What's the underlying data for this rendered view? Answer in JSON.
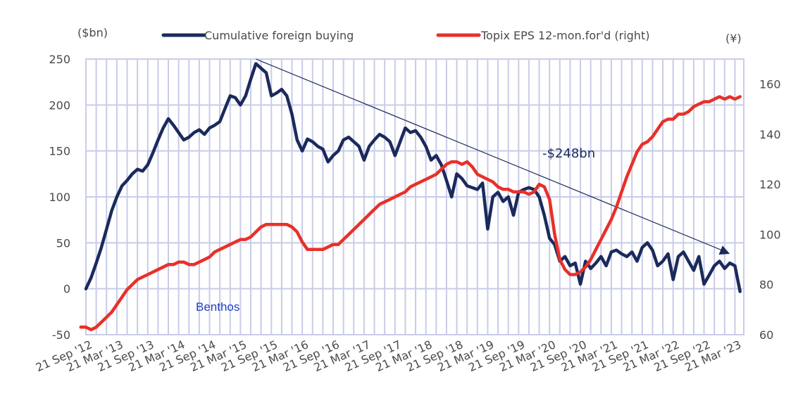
{
  "chart_data": {
    "type": "line",
    "title": "",
    "y_left_unit": "($bn)",
    "y_right_unit": "(¥)",
    "ylim_left": [
      -50,
      250
    ],
    "ylim_right": [
      60,
      170
    ],
    "left_ticks": [
      "250",
      "200",
      "150",
      "100",
      "50",
      "0",
      "-50"
    ],
    "right_ticks": [
      "160",
      "140",
      "120",
      "100",
      "80",
      "60"
    ],
    "x_labels": [
      "21 Sep '12",
      "21 Mar '13",
      "21 Sep '13",
      "21 Mar '14",
      "21 Sep '14",
      "21 Mar '15",
      "21 Sep '15",
      "21 Mar '16",
      "21 Sep '16",
      "21 Mar '17",
      "21 Sep '17",
      "21 Mar '18",
      "21 Sep '18",
      "21 Mar '19",
      "21 Sep '19",
      "21 Mar '20",
      "21 Sep '20",
      "21 Mar '21",
      "21 Sep '21",
      "21 Mar '22",
      "21 Sep '22",
      "21 Mar '23"
    ],
    "grid": true,
    "legend_position": "top",
    "series": [
      {
        "name": "Cumulative foreign buying",
        "axis": "left",
        "color": "#1b2a5c",
        "points": [
          [
            "2012-09",
            0
          ],
          [
            "2012-10",
            12
          ],
          [
            "2012-11",
            28
          ],
          [
            "2012-12",
            45
          ],
          [
            "2013-01",
            65
          ],
          [
            "2013-02",
            85
          ],
          [
            "2013-03",
            100
          ],
          [
            "2013-04",
            112
          ],
          [
            "2013-05",
            118
          ],
          [
            "2013-06",
            125
          ],
          [
            "2013-07",
            130
          ],
          [
            "2013-08",
            128
          ],
          [
            "2013-09",
            135
          ],
          [
            "2013-10",
            148
          ],
          [
            "2013-11",
            162
          ],
          [
            "2013-12",
            175
          ],
          [
            "2014-01",
            185
          ],
          [
            "2014-02",
            178
          ],
          [
            "2014-03",
            170
          ],
          [
            "2014-04",
            162
          ],
          [
            "2014-05",
            165
          ],
          [
            "2014-06",
            170
          ],
          [
            "2014-07",
            173
          ],
          [
            "2014-08",
            168
          ],
          [
            "2014-09",
            175
          ],
          [
            "2014-10",
            178
          ],
          [
            "2014-11",
            182
          ],
          [
            "2014-12",
            196
          ],
          [
            "2015-01",
            210
          ],
          [
            "2015-02",
            208
          ],
          [
            "2015-03",
            200
          ],
          [
            "2015-04",
            210
          ],
          [
            "2015-05",
            228
          ],
          [
            "2015-06",
            245
          ],
          [
            "2015-07",
            240
          ],
          [
            "2015-08",
            235
          ],
          [
            "2015-09",
            210
          ],
          [
            "2015-10",
            213
          ],
          [
            "2015-11",
            217
          ],
          [
            "2015-12",
            210
          ],
          [
            "2016-01",
            190
          ],
          [
            "2016-02",
            162
          ],
          [
            "2016-03",
            150
          ],
          [
            "2016-04",
            163
          ],
          [
            "2016-05",
            160
          ],
          [
            "2016-06",
            155
          ],
          [
            "2016-07",
            152
          ],
          [
            "2016-08",
            138
          ],
          [
            "2016-09",
            145
          ],
          [
            "2016-10",
            150
          ],
          [
            "2016-11",
            162
          ],
          [
            "2016-12",
            165
          ],
          [
            "2017-01",
            160
          ],
          [
            "2017-02",
            155
          ],
          [
            "2017-03",
            140
          ],
          [
            "2017-04",
            155
          ],
          [
            "2017-05",
            162
          ],
          [
            "2017-06",
            168
          ],
          [
            "2017-07",
            165
          ],
          [
            "2017-08",
            160
          ],
          [
            "2017-09",
            145
          ],
          [
            "2017-10",
            160
          ],
          [
            "2017-11",
            175
          ],
          [
            "2017-12",
            170
          ],
          [
            "2018-01",
            172
          ],
          [
            "2018-02",
            165
          ],
          [
            "2018-03",
            155
          ],
          [
            "2018-04",
            140
          ],
          [
            "2018-05",
            145
          ],
          [
            "2018-06",
            135
          ],
          [
            "2018-07",
            118
          ],
          [
            "2018-08",
            100
          ],
          [
            "2018-09",
            125
          ],
          [
            "2018-10",
            120
          ],
          [
            "2018-11",
            112
          ],
          [
            "2018-12",
            110
          ],
          [
            "2019-01",
            108
          ],
          [
            "2019-02",
            115
          ],
          [
            "2019-03",
            65
          ],
          [
            "2019-04",
            100
          ],
          [
            "2019-05",
            105
          ],
          [
            "2019-06",
            95
          ],
          [
            "2019-07",
            100
          ],
          [
            "2019-08",
            80
          ],
          [
            "2019-09",
            105
          ],
          [
            "2019-10",
            108
          ],
          [
            "2019-11",
            110
          ],
          [
            "2019-12",
            108
          ],
          [
            "2020-01",
            100
          ],
          [
            "2020-02",
            80
          ],
          [
            "2020-03",
            55
          ],
          [
            "2020-04",
            48
          ],
          [
            "2020-05",
            30
          ],
          [
            "2020-06",
            35
          ],
          [
            "2020-07",
            25
          ],
          [
            "2020-08",
            28
          ],
          [
            "2020-09",
            5
          ],
          [
            "2020-10",
            30
          ],
          [
            "2020-11",
            22
          ],
          [
            "2020-12",
            28
          ],
          [
            "2021-01",
            35
          ],
          [
            "2021-02",
            25
          ],
          [
            "2021-03",
            40
          ],
          [
            "2021-04",
            42
          ],
          [
            "2021-05",
            38
          ],
          [
            "2021-06",
            35
          ],
          [
            "2021-07",
            40
          ],
          [
            "2021-08",
            30
          ],
          [
            "2021-09",
            45
          ],
          [
            "2021-10",
            50
          ],
          [
            "2021-11",
            42
          ],
          [
            "2021-12",
            25
          ],
          [
            "2022-01",
            30
          ],
          [
            "2022-02",
            38
          ],
          [
            "2022-03",
            10
          ],
          [
            "2022-04",
            35
          ],
          [
            "2022-05",
            40
          ],
          [
            "2022-06",
            30
          ],
          [
            "2022-07",
            20
          ],
          [
            "2022-08",
            35
          ],
          [
            "2022-09",
            5
          ],
          [
            "2022-10",
            15
          ],
          [
            "2022-11",
            25
          ],
          [
            "2022-12",
            30
          ],
          [
            "2023-01",
            22
          ],
          [
            "2023-02",
            28
          ],
          [
            "2023-03",
            25
          ],
          [
            "2023-04",
            -3
          ]
        ]
      },
      {
        "name": "Topix EPS 12-mon.for'd (right)",
        "axis": "right",
        "color": "#e8302a",
        "points": [
          [
            "2012-08",
            63
          ],
          [
            "2012-09",
            63
          ],
          [
            "2012-10",
            62
          ],
          [
            "2012-11",
            63
          ],
          [
            "2012-12",
            65
          ],
          [
            "2013-01",
            67
          ],
          [
            "2013-02",
            69
          ],
          [
            "2013-03",
            72
          ],
          [
            "2013-04",
            75
          ],
          [
            "2013-05",
            78
          ],
          [
            "2013-06",
            80
          ],
          [
            "2013-07",
            82
          ],
          [
            "2013-08",
            83
          ],
          [
            "2013-09",
            84
          ],
          [
            "2013-10",
            85
          ],
          [
            "2013-11",
            86
          ],
          [
            "2013-12",
            87
          ],
          [
            "2014-01",
            88
          ],
          [
            "2014-02",
            88
          ],
          [
            "2014-03",
            89
          ],
          [
            "2014-04",
            89
          ],
          [
            "2014-05",
            88
          ],
          [
            "2014-06",
            88
          ],
          [
            "2014-07",
            89
          ],
          [
            "2014-08",
            90
          ],
          [
            "2014-09",
            91
          ],
          [
            "2014-10",
            93
          ],
          [
            "2014-11",
            94
          ],
          [
            "2014-12",
            95
          ],
          [
            "2015-01",
            96
          ],
          [
            "2015-02",
            97
          ],
          [
            "2015-03",
            98
          ],
          [
            "2015-04",
            98
          ],
          [
            "2015-05",
            99
          ],
          [
            "2015-06",
            101
          ],
          [
            "2015-07",
            103
          ],
          [
            "2015-08",
            104
          ],
          [
            "2015-09",
            104
          ],
          [
            "2015-10",
            104
          ],
          [
            "2015-11",
            104
          ],
          [
            "2015-12",
            104
          ],
          [
            "2016-01",
            103
          ],
          [
            "2016-02",
            101
          ],
          [
            "2016-03",
            97
          ],
          [
            "2016-04",
            94
          ],
          [
            "2016-05",
            94
          ],
          [
            "2016-06",
            94
          ],
          [
            "2016-07",
            94
          ],
          [
            "2016-08",
            95
          ],
          [
            "2016-09",
            96
          ],
          [
            "2016-10",
            96
          ],
          [
            "2016-11",
            98
          ],
          [
            "2016-12",
            100
          ],
          [
            "2017-01",
            102
          ],
          [
            "2017-02",
            104
          ],
          [
            "2017-03",
            106
          ],
          [
            "2017-04",
            108
          ],
          [
            "2017-05",
            110
          ],
          [
            "2017-06",
            112
          ],
          [
            "2017-07",
            113
          ],
          [
            "2017-08",
            114
          ],
          [
            "2017-09",
            115
          ],
          [
            "2017-10",
            116
          ],
          [
            "2017-11",
            117
          ],
          [
            "2017-12",
            119
          ],
          [
            "2018-01",
            120
          ],
          [
            "2018-02",
            121
          ],
          [
            "2018-03",
            122
          ],
          [
            "2018-04",
            123
          ],
          [
            "2018-05",
            124
          ],
          [
            "2018-06",
            126
          ],
          [
            "2018-07",
            128
          ],
          [
            "2018-08",
            129
          ],
          [
            "2018-09",
            129
          ],
          [
            "2018-10",
            128
          ],
          [
            "2018-11",
            129
          ],
          [
            "2018-12",
            127
          ],
          [
            "2019-01",
            124
          ],
          [
            "2019-02",
            123
          ],
          [
            "2019-03",
            122
          ],
          [
            "2019-04",
            121
          ],
          [
            "2019-05",
            119
          ],
          [
            "2019-06",
            118
          ],
          [
            "2019-07",
            118
          ],
          [
            "2019-08",
            117
          ],
          [
            "2019-09",
            117
          ],
          [
            "2019-10",
            117
          ],
          [
            "2019-11",
            116
          ],
          [
            "2019-12",
            117
          ],
          [
            "2020-01",
            120
          ],
          [
            "2020-02",
            119
          ],
          [
            "2020-03",
            114
          ],
          [
            "2020-04",
            100
          ],
          [
            "2020-05",
            90
          ],
          [
            "2020-06",
            86
          ],
          [
            "2020-07",
            84
          ],
          [
            "2020-08",
            84
          ],
          [
            "2020-09",
            85
          ],
          [
            "2020-10",
            87
          ],
          [
            "2020-11",
            90
          ],
          [
            "2020-12",
            94
          ],
          [
            "2021-01",
            98
          ],
          [
            "2021-02",
            102
          ],
          [
            "2021-03",
            106
          ],
          [
            "2021-04",
            111
          ],
          [
            "2021-05",
            117
          ],
          [
            "2021-06",
            123
          ],
          [
            "2021-07",
            128
          ],
          [
            "2021-08",
            133
          ],
          [
            "2021-09",
            136
          ],
          [
            "2021-10",
            137
          ],
          [
            "2021-11",
            139
          ],
          [
            "2021-12",
            142
          ],
          [
            "2022-01",
            145
          ],
          [
            "2022-02",
            146
          ],
          [
            "2022-03",
            146
          ],
          [
            "2022-04",
            148
          ],
          [
            "2022-05",
            148
          ],
          [
            "2022-06",
            149
          ],
          [
            "2022-07",
            151
          ],
          [
            "2022-08",
            152
          ],
          [
            "2022-09",
            153
          ],
          [
            "2022-10",
            153
          ],
          [
            "2022-11",
            154
          ],
          [
            "2022-12",
            155
          ],
          [
            "2023-01",
            154
          ],
          [
            "2023-02",
            155
          ],
          [
            "2023-03",
            154
          ],
          [
            "2023-04",
            155
          ]
        ]
      }
    ],
    "annotations": [
      {
        "text": "-$248bn"
      },
      {
        "text": "Benthos"
      }
    ],
    "trendline": {
      "from": [
        "2015-06",
        250
      ],
      "to": [
        "2023-02",
        38
      ]
    }
  }
}
